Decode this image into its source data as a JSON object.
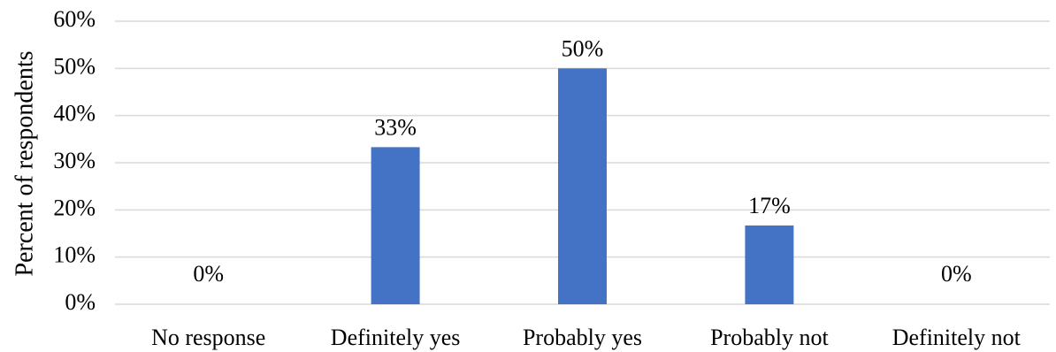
{
  "chart_data": {
    "type": "bar",
    "title": "",
    "xlabel": "",
    "ylabel": "Percent of respondents",
    "categories": [
      "No response",
      "Definitely yes",
      "Probably yes",
      "Probably not",
      "Definitely not"
    ],
    "values": [
      0,
      33.3,
      50,
      16.7,
      0
    ],
    "data_labels": [
      "0%",
      "33%",
      "50%",
      "17%",
      "0%"
    ],
    "ylim": [
      0,
      60
    ],
    "yticks": [
      0,
      10,
      20,
      30,
      40,
      50,
      60
    ],
    "ytick_labels": [
      "0%",
      "10%",
      "20%",
      "30%",
      "40%",
      "50%",
      "60%"
    ],
    "grid": true,
    "bar_color": "#4472c4"
  }
}
